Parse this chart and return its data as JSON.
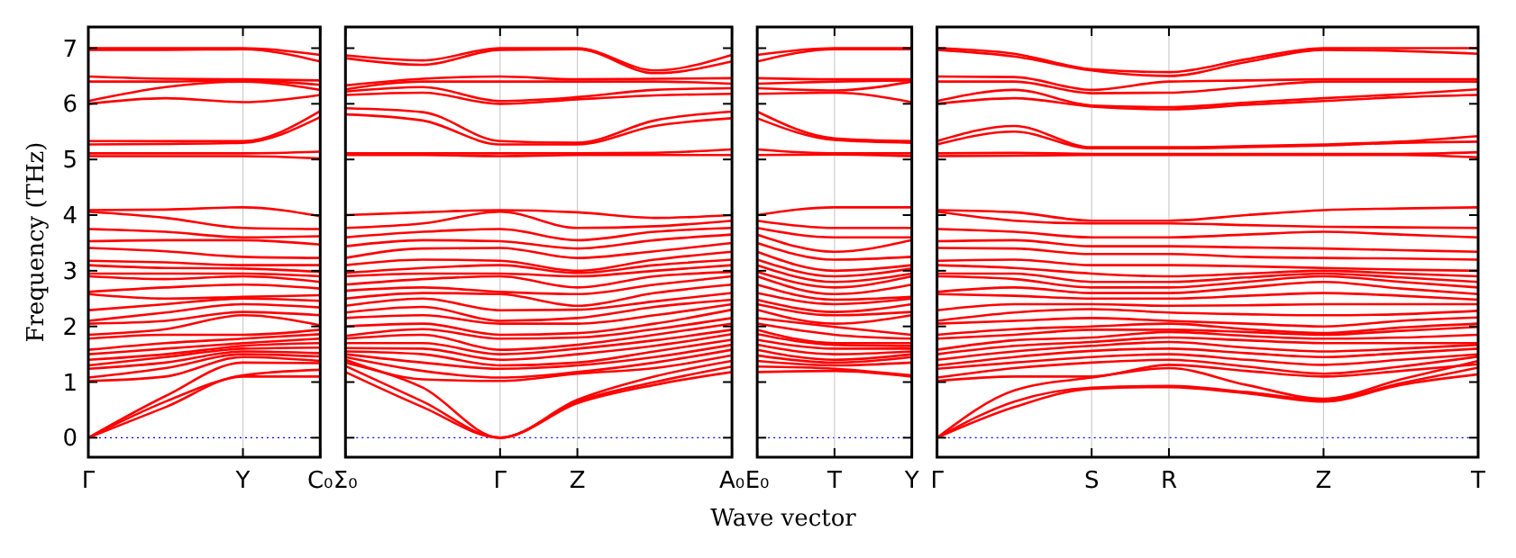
{
  "chart_data": [
    {
      "type": "line",
      "ylabel": "Frequency (THz)",
      "color": "#ff0000",
      "categories": [
        "Γ",
        null,
        "Y",
        "C₀"
      ],
      "ylim": [
        -0.35,
        7.38
      ],
      "yticks": [
        0,
        1,
        2,
        3,
        4,
        5,
        6,
        7
      ],
      "ref_lines": [
        {
          "axis": "y",
          "value": 0,
          "color": "#0000ff",
          "line_style": "dotted"
        },
        {
          "axis": "x",
          "value": "Y",
          "color": "#cccccc"
        }
      ],
      "series": [
        {
          "values": [
            0,
            0.55,
            1.1,
            1.1
          ]
        },
        {
          "values": [
            0,
            0.65,
            1.12,
            1.22
          ]
        },
        {
          "values": [
            0,
            0.75,
            1.35,
            1.34
          ]
        },
        {
          "values": [
            1.02,
            1.1,
            1.45,
            1.38
          ]
        },
        {
          "values": [
            1.08,
            1.25,
            1.5,
            1.46
          ]
        },
        {
          "values": [
            1.24,
            1.35,
            1.55,
            1.52
          ]
        },
        {
          "values": [
            1.3,
            1.45,
            1.6,
            1.62
          ]
        },
        {
          "values": [
            1.4,
            1.5,
            1.65,
            1.7
          ]
        },
        {
          "values": [
            1.5,
            1.6,
            1.7,
            1.78
          ]
        },
        {
          "values": [
            1.58,
            1.7,
            1.78,
            1.86
          ]
        },
        {
          "values": [
            1.78,
            1.85,
            1.85,
            1.94
          ]
        },
        {
          "values": [
            1.85,
            1.95,
            2.2,
            2.02
          ]
        },
        {
          "values": [
            2.05,
            2.1,
            2.26,
            2.2
          ]
        },
        {
          "values": [
            2.1,
            2.25,
            2.4,
            2.34
          ]
        },
        {
          "values": [
            2.29,
            2.4,
            2.5,
            2.46
          ]
        },
        {
          "values": [
            2.58,
            2.5,
            2.53,
            2.56
          ]
        },
        {
          "values": [
            2.62,
            2.7,
            2.75,
            2.68
          ]
        },
        {
          "values": [
            2.9,
            2.85,
            2.9,
            2.8
          ]
        },
        {
          "values": [
            2.95,
            2.95,
            2.95,
            2.9
          ]
        },
        {
          "values": [
            3.1,
            3.05,
            3.04,
            2.98
          ]
        },
        {
          "values": [
            3.18,
            3.15,
            3.1,
            3.1
          ]
        },
        {
          "values": [
            3.41,
            3.35,
            3.25,
            3.23
          ]
        },
        {
          "values": [
            3.53,
            3.55,
            3.55,
            3.47
          ]
        },
        {
          "values": [
            3.75,
            3.7,
            3.6,
            3.62
          ]
        },
        {
          "values": [
            4.06,
            3.95,
            3.77,
            3.75
          ]
        },
        {
          "values": [
            4.09,
            4.1,
            4.14,
            3.98
          ]
        },
        {
          "values": [
            5.06,
            5.06,
            5.06,
            5.02
          ]
        },
        {
          "values": [
            5.11,
            5.11,
            5.11,
            5.14
          ]
        },
        {
          "values": [
            5.27,
            5.28,
            5.3,
            5.76
          ]
        },
        {
          "values": [
            5.33,
            5.33,
            5.33,
            5.87
          ]
        },
        {
          "values": [
            6.0,
            6.1,
            6.03,
            6.16
          ]
        },
        {
          "values": [
            6.05,
            6.3,
            6.4,
            6.25
          ]
        },
        {
          "values": [
            6.4,
            6.4,
            6.42,
            6.34
          ]
        },
        {
          "values": [
            6.49,
            6.45,
            6.44,
            6.42
          ]
        },
        {
          "values": [
            6.97,
            6.97,
            6.98,
            6.76
          ]
        },
        {
          "values": [
            7.0,
            7.0,
            7.0,
            6.88
          ]
        }
      ]
    },
    {
      "type": "line",
      "xlabel": "Wave vector",
      "color": "#ff0000",
      "grid": "x",
      "tick_labels": "x",
      "categories": [
        "Σ₀",
        null,
        "Γ",
        "Z",
        null,
        "A₀"
      ],
      "ylim": [
        -0.35,
        7.38
      ],
      "yticks": [
        0,
        1,
        2,
        3,
        4,
        5,
        6,
        7
      ],
      "ref_lines": [
        {
          "axis": "y",
          "value": 0,
          "color": "#0000ff",
          "line_style": "dotted"
        }
      ],
      "series": [
        {
          "values": [
            1.18,
            0.55,
            0,
            0.62,
            0.95,
            1.18
          ]
        },
        {
          "values": [
            1.29,
            0.65,
            0,
            0.65,
            1.0,
            1.28
          ]
        },
        {
          "values": [
            1.35,
            0.9,
            0,
            0.68,
            1.1,
            1.38
          ]
        },
        {
          "values": [
            1.4,
            1.05,
            1.02,
            1.15,
            1.25,
            1.48
          ]
        },
        {
          "values": [
            1.45,
            1.2,
            1.08,
            1.18,
            1.35,
            1.58
          ]
        },
        {
          "values": [
            1.5,
            1.35,
            1.24,
            1.3,
            1.45,
            1.67
          ]
        },
        {
          "values": [
            1.55,
            1.5,
            1.3,
            1.35,
            1.55,
            1.76
          ]
        },
        {
          "values": [
            1.61,
            1.6,
            1.4,
            1.5,
            1.65,
            1.86
          ]
        },
        {
          "values": [
            1.7,
            1.7,
            1.5,
            1.6,
            1.75,
            1.94
          ]
        },
        {
          "values": [
            1.78,
            1.85,
            1.58,
            1.67,
            1.85,
            2.05
          ]
        },
        {
          "values": [
            1.83,
            1.95,
            1.78,
            1.8,
            1.95,
            2.15
          ]
        },
        {
          "values": [
            2.0,
            2.05,
            1.85,
            1.88,
            2.05,
            2.3
          ]
        },
        {
          "values": [
            2.15,
            2.2,
            2.05,
            2.05,
            2.2,
            2.4
          ]
        },
        {
          "values": [
            2.25,
            2.35,
            2.1,
            2.15,
            2.35,
            2.48
          ]
        },
        {
          "values": [
            2.37,
            2.5,
            2.29,
            2.3,
            2.45,
            2.6
          ]
        },
        {
          "values": [
            2.5,
            2.6,
            2.58,
            2.37,
            2.6,
            2.75
          ]
        },
        {
          "values": [
            2.64,
            2.7,
            2.62,
            2.58,
            2.75,
            2.9
          ]
        },
        {
          "values": [
            2.75,
            2.85,
            2.9,
            2.7,
            2.9,
            2.98
          ]
        },
        {
          "values": [
            2.9,
            2.95,
            2.95,
            2.9,
            3.0,
            3.1
          ]
        },
        {
          "values": [
            2.96,
            3.05,
            3.1,
            2.96,
            3.1,
            3.2
          ]
        },
        {
          "values": [
            3.1,
            3.2,
            3.18,
            3.0,
            3.2,
            3.34
          ]
        },
        {
          "values": [
            3.23,
            3.4,
            3.41,
            3.23,
            3.35,
            3.5
          ]
        },
        {
          "values": [
            3.44,
            3.55,
            3.53,
            3.4,
            3.55,
            3.65
          ]
        },
        {
          "values": [
            3.6,
            3.7,
            3.75,
            3.55,
            3.7,
            3.77
          ]
        },
        {
          "values": [
            3.77,
            3.85,
            4.06,
            3.77,
            3.8,
            3.9
          ]
        },
        {
          "values": [
            4.0,
            4.05,
            4.09,
            4.05,
            3.95,
            4.0
          ]
        },
        {
          "values": [
            5.08,
            5.08,
            5.06,
            5.08,
            5.08,
            5.08
          ]
        },
        {
          "values": [
            5.11,
            5.11,
            5.11,
            5.11,
            5.12,
            5.18
          ]
        },
        {
          "values": [
            5.81,
            5.7,
            5.27,
            5.27,
            5.6,
            5.74
          ]
        },
        {
          "values": [
            5.92,
            5.85,
            5.33,
            5.3,
            5.7,
            5.86
          ]
        },
        {
          "values": [
            6.16,
            6.2,
            6.0,
            6.08,
            6.15,
            6.18
          ]
        },
        {
          "values": [
            6.22,
            6.3,
            6.05,
            6.12,
            6.25,
            6.28
          ]
        },
        {
          "values": [
            6.26,
            6.4,
            6.4,
            6.4,
            6.4,
            6.36
          ]
        },
        {
          "values": [
            6.33,
            6.45,
            6.49,
            6.44,
            6.45,
            6.46
          ]
        },
        {
          "values": [
            6.82,
            6.7,
            6.97,
            6.98,
            6.55,
            6.76
          ]
        },
        {
          "values": [
            6.87,
            6.78,
            7.0,
            7.0,
            6.6,
            6.88
          ]
        }
      ]
    },
    {
      "type": "line",
      "color": "#ff0000",
      "tick_labels": "x",
      "categories": [
        "E₀",
        "T",
        "Y"
      ],
      "ylim": [
        -0.35,
        7.38
      ],
      "yticks": [
        0,
        1,
        2,
        3,
        4,
        5,
        6,
        7
      ],
      "ref_lines": [
        {
          "axis": "y",
          "value": 0,
          "color": "#0000ff",
          "line_style": "dotted"
        },
        {
          "axis": "x",
          "value": "T",
          "color": "#cccccc"
        }
      ],
      "series": [
        {
          "values": [
            1.18,
            1.2,
            1.1
          ]
        },
        {
          "values": [
            1.28,
            1.24,
            1.12
          ]
        },
        {
          "values": [
            1.38,
            1.3,
            1.35
          ]
        },
        {
          "values": [
            1.48,
            1.35,
            1.45
          ]
        },
        {
          "values": [
            1.58,
            1.4,
            1.5
          ]
        },
        {
          "values": [
            1.67,
            1.5,
            1.55
          ]
        },
        {
          "values": [
            1.76,
            1.6,
            1.6
          ]
        },
        {
          "values": [
            1.86,
            1.67,
            1.65
          ]
        },
        {
          "values": [
            1.94,
            1.7,
            1.7
          ]
        },
        {
          "values": [
            2.05,
            1.85,
            1.78
          ]
        },
        {
          "values": [
            2.15,
            1.99,
            1.85
          ]
        },
        {
          "values": [
            2.3,
            2.05,
            2.2
          ]
        },
        {
          "values": [
            2.4,
            2.2,
            2.26
          ]
        },
        {
          "values": [
            2.48,
            2.26,
            2.4
          ]
        },
        {
          "values": [
            2.6,
            2.4,
            2.5
          ]
        },
        {
          "values": [
            2.75,
            2.48,
            2.53
          ]
        },
        {
          "values": [
            2.9,
            2.58,
            2.75
          ]
        },
        {
          "values": [
            2.98,
            2.7,
            2.9
          ]
        },
        {
          "values": [
            3.1,
            2.8,
            2.95
          ]
        },
        {
          "values": [
            3.2,
            2.9,
            3.04
          ]
        },
        {
          "values": [
            3.34,
            3.0,
            3.1
          ]
        },
        {
          "values": [
            3.5,
            3.2,
            3.25
          ]
        },
        {
          "values": [
            3.65,
            3.34,
            3.55
          ]
        },
        {
          "values": [
            3.77,
            3.6,
            3.6
          ]
        },
        {
          "values": [
            3.9,
            3.77,
            3.77
          ]
        },
        {
          "values": [
            4.0,
            4.14,
            4.14
          ]
        },
        {
          "values": [
            5.08,
            5.09,
            5.06
          ]
        },
        {
          "values": [
            5.18,
            5.11,
            5.11
          ]
        },
        {
          "values": [
            5.74,
            5.35,
            5.3
          ]
        },
        {
          "values": [
            5.86,
            5.38,
            5.33
          ]
        },
        {
          "values": [
            6.18,
            6.2,
            6.03
          ]
        },
        {
          "values": [
            6.28,
            6.24,
            6.4
          ]
        },
        {
          "values": [
            6.36,
            6.4,
            6.42
          ]
        },
        {
          "values": [
            6.46,
            6.44,
            6.44
          ]
        },
        {
          "values": [
            6.76,
            6.98,
            6.98
          ]
        },
        {
          "values": [
            6.88,
            7.0,
            7.0
          ]
        }
      ]
    },
    {
      "type": "line",
      "color": "#ff0000",
      "grid": "x",
      "tick_labels": "x",
      "categories": [
        "Γ",
        null,
        "S",
        "R",
        null,
        "Z",
        null,
        "T"
      ],
      "ylim": [
        -0.35,
        7.38
      ],
      "yticks": [
        0,
        1,
        2,
        3,
        4,
        5,
        6,
        7
      ],
      "ref_lines": [
        {
          "axis": "y",
          "value": 0,
          "color": "#0000ff",
          "line_style": "dotted"
        }
      ],
      "series": [
        {
          "values": [
            0,
            0.55,
            0.88,
            0.91,
            0.8,
            0.65,
            0.95,
            1.14
          ]
        },
        {
          "values": [
            0,
            0.65,
            0.9,
            0.93,
            0.82,
            0.68,
            0.98,
            1.26
          ]
        },
        {
          "values": [
            0,
            0.85,
            1.08,
            1.25,
            0.95,
            0.7,
            1.05,
            1.38
          ]
        },
        {
          "values": [
            1.02,
            1.1,
            1.1,
            1.31,
            1.2,
            1.1,
            1.2,
            1.32
          ]
        },
        {
          "values": [
            1.08,
            1.25,
            1.35,
            1.4,
            1.28,
            1.15,
            1.28,
            1.46
          ]
        },
        {
          "values": [
            1.24,
            1.35,
            1.45,
            1.5,
            1.4,
            1.31,
            1.4,
            1.5
          ]
        },
        {
          "values": [
            1.3,
            1.45,
            1.56,
            1.6,
            1.52,
            1.45,
            1.52,
            1.6
          ]
        },
        {
          "values": [
            1.4,
            1.55,
            1.65,
            1.72,
            1.62,
            1.55,
            1.6,
            1.67
          ]
        },
        {
          "values": [
            1.5,
            1.65,
            1.72,
            1.8,
            1.75,
            1.7,
            1.7,
            1.7
          ]
        },
        {
          "values": [
            1.58,
            1.75,
            1.8,
            1.9,
            1.83,
            1.78,
            1.8,
            1.85
          ]
        },
        {
          "values": [
            1.78,
            1.85,
            1.94,
            1.94,
            1.9,
            1.85,
            1.92,
            1.99
          ]
        },
        {
          "values": [
            1.85,
            1.95,
            2.0,
            2.05,
            1.95,
            1.88,
            1.98,
            2.05
          ]
        },
        {
          "values": [
            2.05,
            2.1,
            2.15,
            2.1,
            2.05,
            2.0,
            2.1,
            2.16
          ]
        },
        {
          "values": [
            2.1,
            2.25,
            2.31,
            2.25,
            2.22,
            2.2,
            2.22,
            2.28
          ]
        },
        {
          "values": [
            2.29,
            2.4,
            2.4,
            2.37,
            2.38,
            2.4,
            2.4,
            2.4
          ]
        },
        {
          "values": [
            2.58,
            2.55,
            2.5,
            2.5,
            2.55,
            2.6,
            2.55,
            2.48
          ]
        },
        {
          "values": [
            2.62,
            2.7,
            2.6,
            2.6,
            2.7,
            2.8,
            2.68,
            2.58
          ]
        },
        {
          "values": [
            2.9,
            2.85,
            2.7,
            2.7,
            2.8,
            2.9,
            2.8,
            2.7
          ]
        },
        {
          "values": [
            2.95,
            2.95,
            2.8,
            2.8,
            2.88,
            2.95,
            2.88,
            2.8
          ]
        },
        {
          "values": [
            3.1,
            3.05,
            2.95,
            2.9,
            2.95,
            3.0,
            2.95,
            2.9
          ]
        },
        {
          "values": [
            3.18,
            3.2,
            3.1,
            3.1,
            3.08,
            3.05,
            3.02,
            3.0
          ]
        },
        {
          "values": [
            3.41,
            3.4,
            3.3,
            3.3,
            3.25,
            3.23,
            3.22,
            3.2
          ]
        },
        {
          "values": [
            3.53,
            3.55,
            3.44,
            3.44,
            3.42,
            3.4,
            3.37,
            3.34
          ]
        },
        {
          "values": [
            3.75,
            3.7,
            3.6,
            3.6,
            3.65,
            3.7,
            3.65,
            3.6
          ]
        },
        {
          "values": [
            4.06,
            3.9,
            3.85,
            3.85,
            3.82,
            3.79,
            3.78,
            3.77
          ]
        },
        {
          "values": [
            4.09,
            4.05,
            3.9,
            3.9,
            4.0,
            4.09,
            4.12,
            4.14
          ]
        },
        {
          "values": [
            5.06,
            5.07,
            5.08,
            5.08,
            5.08,
            5.08,
            5.08,
            5.04
          ]
        },
        {
          "values": [
            5.11,
            5.12,
            5.1,
            5.1,
            5.1,
            5.1,
            5.1,
            5.13
          ]
        },
        {
          "values": [
            5.27,
            5.5,
            5.2,
            5.2,
            5.22,
            5.25,
            5.3,
            5.32
          ]
        },
        {
          "values": [
            5.33,
            5.6,
            5.22,
            5.22,
            5.24,
            5.27,
            5.32,
            5.42
          ]
        },
        {
          "values": [
            6.0,
            6.1,
            5.95,
            5.9,
            5.98,
            6.05,
            6.12,
            6.16
          ]
        },
        {
          "values": [
            6.05,
            6.25,
            5.97,
            5.94,
            6.02,
            6.1,
            6.17,
            6.26
          ]
        },
        {
          "values": [
            6.4,
            6.4,
            6.19,
            6.2,
            6.3,
            6.4,
            6.4,
            6.4
          ]
        },
        {
          "values": [
            6.49,
            6.48,
            6.25,
            6.4,
            6.42,
            6.44,
            6.44,
            6.44
          ]
        },
        {
          "values": [
            6.97,
            6.85,
            6.6,
            6.5,
            6.75,
            6.97,
            6.95,
            6.9
          ]
        },
        {
          "values": [
            7.0,
            6.9,
            6.62,
            6.57,
            6.8,
            7.0,
            7.0,
            7.0
          ]
        }
      ]
    }
  ]
}
